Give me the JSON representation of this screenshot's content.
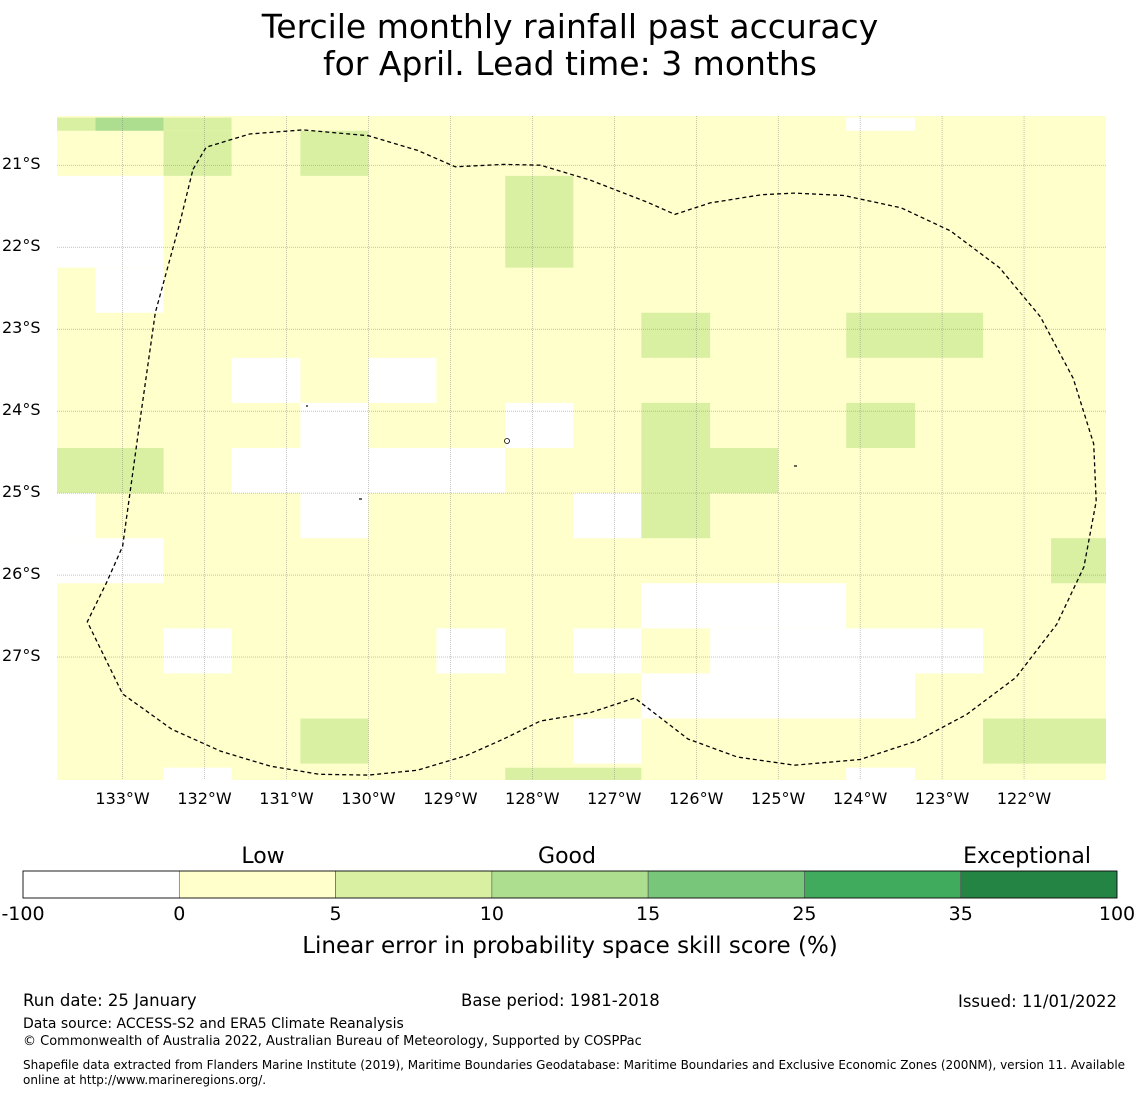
{
  "title": {
    "line1": "Tercile monthly rainfall past accuracy",
    "line2": "for April. Lead time: 3 months"
  },
  "map": {
    "lon_range": [
      -133.8,
      -121.0
    ],
    "lat_range": [
      -28.5,
      -20.4
    ],
    "cell_size_deg": 0.8333,
    "lat_ticks": [
      -21,
      -22,
      -23,
      -24,
      -25,
      -26,
      -27
    ],
    "lat_labels": [
      "21°S",
      "22°S",
      "23°S",
      "24°S",
      "25°S",
      "26°S",
      "27°S"
    ],
    "lon_ticks": [
      -133,
      -132,
      -131,
      -130,
      -129,
      -128,
      -127,
      -126,
      -125,
      -124,
      -123,
      -122
    ],
    "lon_labels": [
      "133°W",
      "132°W",
      "131°W",
      "130°W",
      "129°W",
      "128°W",
      "127°W",
      "126°W",
      "125°W",
      "124°W",
      "123°W",
      "122°W"
    ],
    "default_class": "0-5",
    "cells": [
      {
        "lon": [
          -133.8,
          -133.33
        ],
        "lat": [
          -20.42,
          -20.58
        ],
        "class": "5-10"
      },
      {
        "lon": [
          -133.33,
          -132.5
        ],
        "lat": [
          -20.42,
          -20.58
        ],
        "class": "10-15"
      },
      {
        "lon": [
          -132.5,
          -131.67
        ],
        "lat": [
          -20.42,
          -20.58
        ],
        "class": "5-10"
      },
      {
        "lon": [
          -132.5,
          -131.67
        ],
        "lat": [
          -20.58,
          -21.13
        ],
        "class": "5-10"
      },
      {
        "lon": [
          -130.83,
          -130.0
        ],
        "lat": [
          -20.58,
          -21.13
        ],
        "class": "5-10"
      },
      {
        "lon": [
          -124.17,
          -123.33
        ],
        "lat": [
          -20.42,
          -20.58
        ],
        "class": "-100-0"
      },
      {
        "lon": [
          -133.8,
          -132.5
        ],
        "lat": [
          -21.13,
          -22.25
        ],
        "class": "-100-0"
      },
      {
        "lon": [
          -133.33,
          -132.5
        ],
        "lat": [
          -22.25,
          -22.8
        ],
        "class": "-100-0"
      },
      {
        "lon": [
          -128.33,
          -127.5
        ],
        "lat": [
          -21.13,
          -22.25
        ],
        "class": "5-10"
      },
      {
        "lon": [
          -126.67,
          -125.83
        ],
        "lat": [
          -22.8,
          -23.35
        ],
        "class": "5-10"
      },
      {
        "lon": [
          -124.17,
          -122.5
        ],
        "lat": [
          -22.8,
          -23.35
        ],
        "class": "5-10"
      },
      {
        "lon": [
          -131.67,
          -130.83
        ],
        "lat": [
          -23.35,
          -23.9
        ],
        "class": "-100-0"
      },
      {
        "lon": [
          -130.0,
          -129.17
        ],
        "lat": [
          -23.35,
          -23.9
        ],
        "class": "-100-0"
      },
      {
        "lon": [
          -130.83,
          -130.0
        ],
        "lat": [
          -23.9,
          -24.45
        ],
        "class": "-100-0"
      },
      {
        "lon": [
          -128.33,
          -127.5
        ],
        "lat": [
          -23.9,
          -24.45
        ],
        "class": "-100-0"
      },
      {
        "lon": [
          -126.67,
          -125.83
        ],
        "lat": [
          -23.9,
          -24.45
        ],
        "class": "5-10"
      },
      {
        "lon": [
          -124.17,
          -123.33
        ],
        "lat": [
          -23.9,
          -24.45
        ],
        "class": "5-10"
      },
      {
        "lon": [
          -133.8,
          -132.5
        ],
        "lat": [
          -24.45,
          -25.0
        ],
        "class": "5-10"
      },
      {
        "lon": [
          -131.67,
          -128.33
        ],
        "lat": [
          -24.45,
          -25.0
        ],
        "class": "-100-0"
      },
      {
        "lon": [
          -126.67,
          -125.0
        ],
        "lat": [
          -24.45,
          -25.0
        ],
        "class": "5-10"
      },
      {
        "lon": [
          -133.8,
          -133.33
        ],
        "lat": [
          -25.0,
          -25.55
        ],
        "class": "-100-0"
      },
      {
        "lon": [
          -130.83,
          -130.0
        ],
        "lat": [
          -25.0,
          -25.55
        ],
        "class": "-100-0"
      },
      {
        "lon": [
          -127.5,
          -126.67
        ],
        "lat": [
          -25.0,
          -25.55
        ],
        "class": "-100-0"
      },
      {
        "lon": [
          -126.67,
          -125.83
        ],
        "lat": [
          -25.0,
          -25.55
        ],
        "class": "5-10"
      },
      {
        "lon": [
          -133.8,
          -132.5
        ],
        "lat": [
          -25.55,
          -26.1
        ],
        "class": "-100-0"
      },
      {
        "lon": [
          -121.67,
          -121.0
        ],
        "lat": [
          -25.55,
          -26.1
        ],
        "class": "5-10"
      },
      {
        "lon": [
          -126.67,
          -124.17
        ],
        "lat": [
          -26.1,
          -26.65
        ],
        "class": "-100-0"
      },
      {
        "lon": [
          -132.5,
          -131.67
        ],
        "lat": [
          -26.65,
          -27.2
        ],
        "class": "-100-0"
      },
      {
        "lon": [
          -129.17,
          -128.33
        ],
        "lat": [
          -26.65,
          -27.2
        ],
        "class": "-100-0"
      },
      {
        "lon": [
          -127.5,
          -126.67
        ],
        "lat": [
          -26.65,
          -27.2
        ],
        "class": "-100-0"
      },
      {
        "lon": [
          -125.83,
          -122.5
        ],
        "lat": [
          -26.65,
          -27.2
        ],
        "class": "-100-0"
      },
      {
        "lon": [
          -126.67,
          -123.33
        ],
        "lat": [
          -27.2,
          -27.75
        ],
        "class": "-100-0"
      },
      {
        "lon": [
          -130.83,
          -130.0
        ],
        "lat": [
          -27.75,
          -28.3
        ],
        "class": "5-10"
      },
      {
        "lon": [
          -127.5,
          -126.67
        ],
        "lat": [
          -27.75,
          -28.3
        ],
        "class": "-100-0"
      },
      {
        "lon": [
          -122.5,
          -121.0
        ],
        "lat": [
          -27.75,
          -28.3
        ],
        "class": "5-10"
      },
      {
        "lon": [
          -132.5,
          -131.67
        ],
        "lat": [
          -28.35,
          -28.5
        ],
        "class": "-100-0"
      },
      {
        "lon": [
          -128.33,
          -126.67
        ],
        "lat": [
          -28.35,
          -28.5
        ],
        "class": "5-10"
      },
      {
        "lon": [
          -124.17,
          -123.33
        ],
        "lat": [
          -28.35,
          -28.5
        ],
        "class": "-100-0"
      }
    ],
    "eez_boundary": [
      [
        -132.14,
        -21.05
      ],
      [
        -131.98,
        -20.78
      ],
      [
        -131.45,
        -20.62
      ],
      [
        -130.8,
        -20.57
      ],
      [
        -130.0,
        -20.64
      ],
      [
        -129.4,
        -20.82
      ],
      [
        -128.94,
        -21.02
      ],
      [
        -128.35,
        -20.99
      ],
      [
        -127.9,
        -21.0
      ],
      [
        -127.3,
        -21.18
      ],
      [
        -126.6,
        -21.45
      ],
      [
        -126.26,
        -21.6
      ],
      [
        -125.83,
        -21.46
      ],
      [
        -125.2,
        -21.36
      ],
      [
        -124.8,
        -21.34
      ],
      [
        -124.2,
        -21.37
      ],
      [
        -123.5,
        -21.52
      ],
      [
        -122.9,
        -21.8
      ],
      [
        -122.3,
        -22.25
      ],
      [
        -121.8,
        -22.85
      ],
      [
        -121.4,
        -23.6
      ],
      [
        -121.15,
        -24.4
      ],
      [
        -121.12,
        -25.1
      ],
      [
        -121.27,
        -25.9
      ],
      [
        -121.6,
        -26.6
      ],
      [
        -122.1,
        -27.25
      ],
      [
        -122.7,
        -27.7
      ],
      [
        -123.3,
        -28.02
      ],
      [
        -124.0,
        -28.25
      ],
      [
        -124.8,
        -28.32
      ],
      [
        -125.5,
        -28.22
      ],
      [
        -126.1,
        -28.0
      ],
      [
        -126.75,
        -27.5
      ],
      [
        -127.3,
        -27.68
      ],
      [
        -127.9,
        -27.78
      ],
      [
        -128.35,
        -28.0
      ],
      [
        -128.8,
        -28.2
      ],
      [
        -129.4,
        -28.38
      ],
      [
        -130.0,
        -28.44
      ],
      [
        -130.6,
        -28.43
      ],
      [
        -131.2,
        -28.33
      ],
      [
        -131.8,
        -28.15
      ],
      [
        -132.4,
        -27.88
      ],
      [
        -133.0,
        -27.45
      ],
      [
        -133.43,
        -26.57
      ],
      [
        -133.2,
        -26.1
      ],
      [
        -133.0,
        -25.65
      ],
      [
        -132.8,
        -24.2
      ],
      [
        -132.6,
        -22.8
      ],
      [
        -132.3,
        -21.7
      ],
      [
        -132.14,
        -21.05
      ]
    ]
  },
  "legend": {
    "categories": [
      "Low",
      "Good",
      "Exceptional"
    ],
    "ticks": [
      "-100",
      "0",
      "5",
      "10",
      "15",
      "25",
      "35",
      "100"
    ],
    "bins": [
      {
        "range": "-100-0",
        "color": "#ffffff"
      },
      {
        "range": "0-5",
        "color": "#ffffcc"
      },
      {
        "range": "5-10",
        "color": "#d9f0a3"
      },
      {
        "range": "10-15",
        "color": "#addd8e"
      },
      {
        "range": "15-25",
        "color": "#78c679"
      },
      {
        "range": "25-35",
        "color": "#41ab5d"
      },
      {
        "range": "35-100",
        "color": "#238443"
      }
    ],
    "label": "Linear error in probability space skill score (%)"
  },
  "footer": {
    "run_date": "Run date: 25 January",
    "base_period": "Base period: 1981-2018",
    "issued": "Issued: 11/01/2022",
    "data_source": "Data source: ACCESS-S2 and ERA5 Climate Reanalysis",
    "copyright": "© Commonwealth of Australia 2022, Australian Bureau of Meteorology, Supported by COSPPac",
    "shapefile_line1": "Shapefile data extracted from Flanders Marine Institute (2019), Maritime Boundaries Geodatabase: Maritime Boundaries and Exclusive Economic Zones (200NM), version 11. Available",
    "shapefile_line2": "online at http://www.marineregions.org/."
  }
}
